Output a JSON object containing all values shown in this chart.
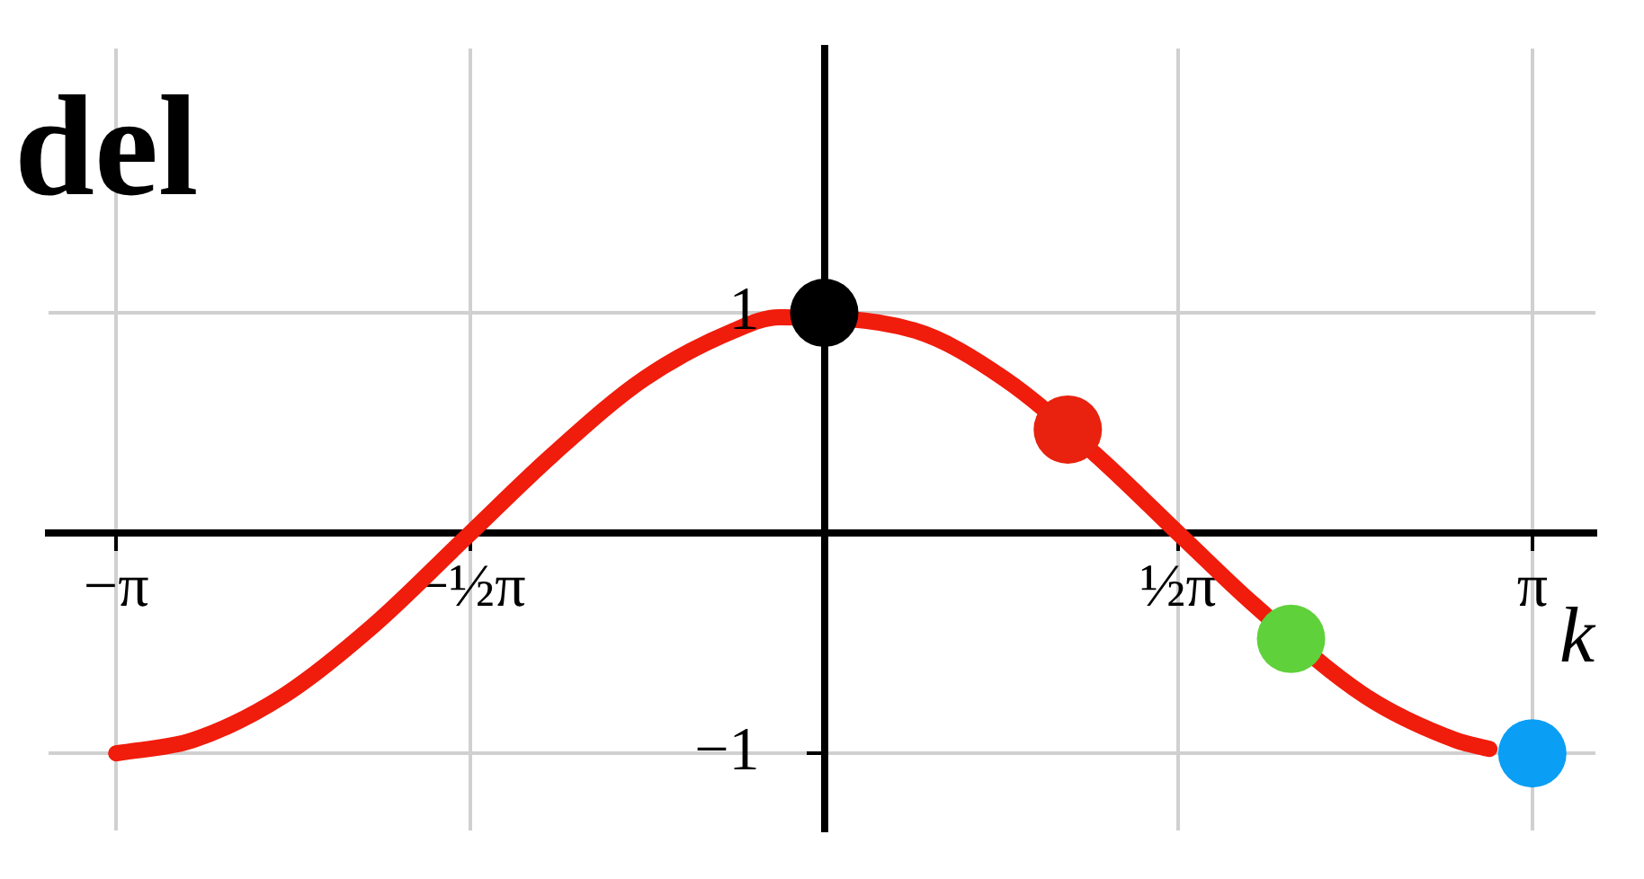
{
  "chart_data": {
    "type": "line",
    "title": "del",
    "xlabel": "k",
    "xlim": [
      -3.44,
      3.42
    ],
    "ylim": [
      -1.35,
      2.2
    ],
    "xticks": [
      {
        "value": -3.14,
        "label": "−π"
      },
      {
        "value": -1.57,
        "label": "−½π"
      },
      {
        "value": 1.57,
        "label": "½π"
      },
      {
        "value": 3.14,
        "label": "π"
      }
    ],
    "yticks": [
      1,
      {
        "value": -1,
        "label": "−1"
      }
    ],
    "grid": true,
    "legend": false,
    "series": [
      {
        "color": "#f01c0c",
        "marker": "none",
        "line_style": "solid",
        "x": [
          -3.14,
          -2.8,
          -2.4,
          -2.0,
          -1.6,
          -1.2,
          -0.8,
          -0.4,
          -0.2,
          0.4,
          0.8,
          1.2,
          1.6,
          1.9,
          2.4,
          2.8,
          2.95
        ],
        "values": [
          -1,
          -0.94,
          -0.74,
          -0.42,
          -0.03,
          0.36,
          0.7,
          0.92,
          0.98,
          0.92,
          0.7,
          0.36,
          -0.03,
          -0.32,
          -0.74,
          -0.94,
          -0.98
        ]
      },
      {
        "type": "scatter",
        "marker": "circle",
        "x": [
          0,
          1.08,
          2.07,
          3.14
        ],
        "values": [
          1,
          0.47,
          -0.48,
          -1
        ],
        "colors": [
          "#000000",
          "#e8220e",
          "#5fd13a",
          "#0a9ef5"
        ]
      }
    ]
  }
}
